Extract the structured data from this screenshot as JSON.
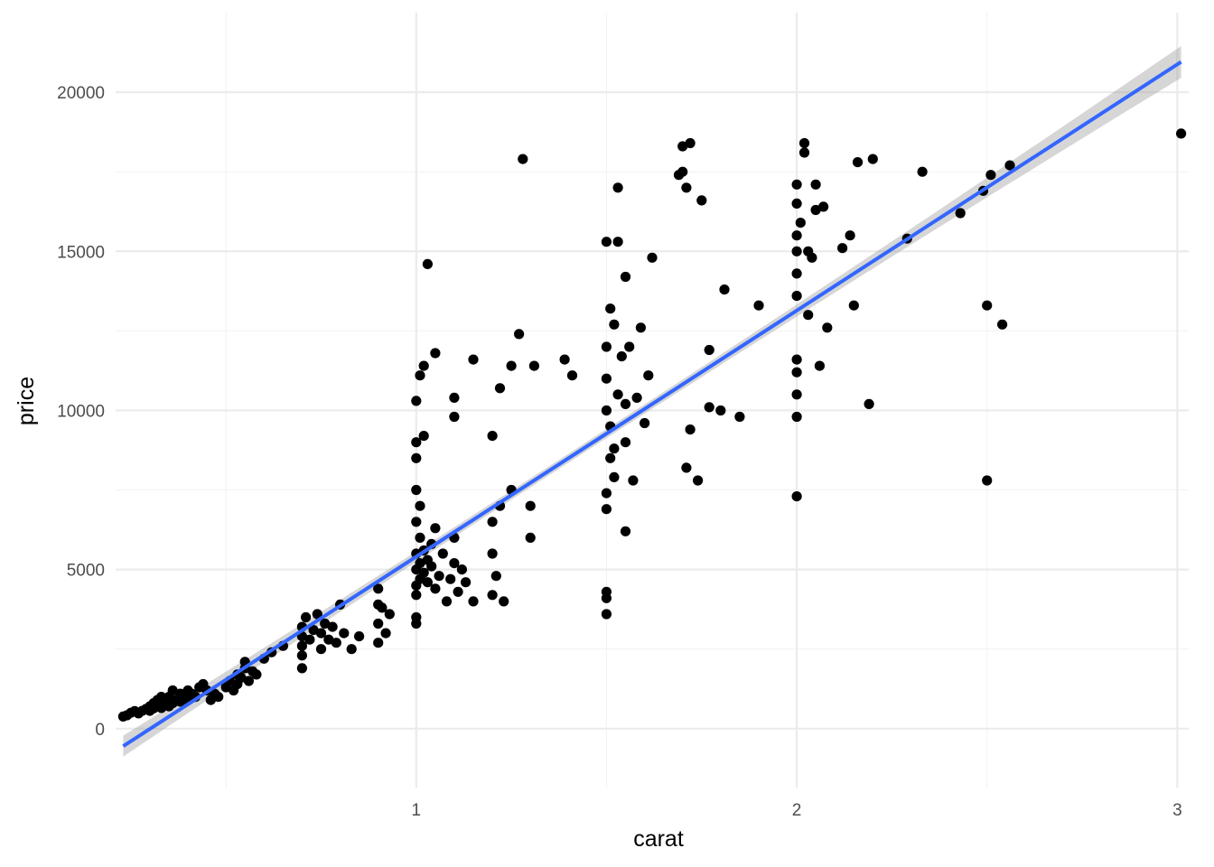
{
  "chart_data": {
    "type": "scatter",
    "xlabel": "carat",
    "ylabel": "price",
    "xlim": [
      0.21,
      3.03
    ],
    "ylim": [
      -1850,
      22500
    ],
    "x_ticks": [
      1,
      2,
      3
    ],
    "x_tick_labels": [
      "1",
      "2",
      "3"
    ],
    "y_ticks": [
      0,
      5000,
      10000,
      15000,
      20000
    ],
    "y_tick_labels": [
      "0",
      "5000",
      "10000",
      "15000",
      "20000"
    ],
    "grid": true,
    "legend": "none",
    "colors": {
      "points": "#000000",
      "fit_line": "#3366ff",
      "confidence_band": "#999999"
    },
    "fit": {
      "method": "lm",
      "x": [
        0.23,
        3.01
      ],
      "y": [
        -550,
        20950
      ],
      "se_band_halfwidth": [
        140,
        500
      ]
    },
    "points": [
      [
        0.23,
        380
      ],
      [
        0.24,
        420
      ],
      [
        0.25,
        500
      ],
      [
        0.26,
        550
      ],
      [
        0.27,
        480
      ],
      [
        0.28,
        560
      ],
      [
        0.29,
        620
      ],
      [
        0.3,
        700
      ],
      [
        0.3,
        560
      ],
      [
        0.31,
        800
      ],
      [
        0.31,
        640
      ],
      [
        0.32,
        900
      ],
      [
        0.32,
        700
      ],
      [
        0.33,
        650
      ],
      [
        0.33,
        1000
      ],
      [
        0.34,
        760
      ],
      [
        0.34,
        860
      ],
      [
        0.35,
        1000
      ],
      [
        0.35,
        700
      ],
      [
        0.36,
        1200
      ],
      [
        0.36,
        800
      ],
      [
        0.37,
        900
      ],
      [
        0.38,
        1100
      ],
      [
        0.38,
        850
      ],
      [
        0.39,
        1000
      ],
      [
        0.4,
        1200
      ],
      [
        0.4,
        900
      ],
      [
        0.41,
        1100
      ],
      [
        0.42,
        1000
      ],
      [
        0.43,
        1300
      ],
      [
        0.44,
        1400
      ],
      [
        0.45,
        1200
      ],
      [
        0.46,
        900
      ],
      [
        0.47,
        1100
      ],
      [
        0.48,
        1000
      ],
      [
        0.5,
        1300
      ],
      [
        0.51,
        1500
      ],
      [
        0.52,
        1200
      ],
      [
        0.53,
        1700
      ],
      [
        0.53,
        1400
      ],
      [
        0.54,
        1600
      ],
      [
        0.55,
        1900
      ],
      [
        0.55,
        2100
      ],
      [
        0.56,
        1500
      ],
      [
        0.57,
        1800
      ],
      [
        0.58,
        1700
      ],
      [
        0.6,
        2200
      ],
      [
        0.62,
        2400
      ],
      [
        0.65,
        2600
      ],
      [
        0.7,
        1900
      ],
      [
        0.7,
        2300
      ],
      [
        0.7,
        2600
      ],
      [
        0.7,
        2900
      ],
      [
        0.7,
        3200
      ],
      [
        0.71,
        3500
      ],
      [
        0.72,
        2800
      ],
      [
        0.73,
        3100
      ],
      [
        0.74,
        3600
      ],
      [
        0.75,
        3000
      ],
      [
        0.75,
        2500
      ],
      [
        0.76,
        3300
      ],
      [
        0.77,
        2800
      ],
      [
        0.78,
        3200
      ],
      [
        0.79,
        2700
      ],
      [
        0.8,
        3900
      ],
      [
        0.81,
        3000
      ],
      [
        0.83,
        2500
      ],
      [
        0.85,
        2900
      ],
      [
        0.9,
        3300
      ],
      [
        0.9,
        3900
      ],
      [
        0.9,
        4400
      ],
      [
        0.9,
        2700
      ],
      [
        0.91,
        3800
      ],
      [
        0.92,
        3000
      ],
      [
        0.93,
        3600
      ],
      [
        1.0,
        4500
      ],
      [
        1.0,
        5000
      ],
      [
        1.0,
        5500
      ],
      [
        1.0,
        4200
      ],
      [
        1.0,
        6500
      ],
      [
        1.0,
        7500
      ],
      [
        1.0,
        8500
      ],
      [
        1.0,
        9000
      ],
      [
        1.0,
        3500
      ],
      [
        1.0,
        3300
      ],
      [
        1.01,
        4700
      ],
      [
        1.01,
        5200
      ],
      [
        1.01,
        6000
      ],
      [
        1.01,
        7000
      ],
      [
        1.02,
        4900
      ],
      [
        1.02,
        5600
      ],
      [
        1.02,
        9200
      ],
      [
        1.03,
        4600
      ],
      [
        1.03,
        5300
      ],
      [
        1.04,
        5100
      ],
      [
        1.04,
        5800
      ],
      [
        1.05,
        4400
      ],
      [
        1.05,
        6300
      ],
      [
        1.06,
        4800
      ],
      [
        1.07,
        5500
      ],
      [
        1.08,
        4000
      ],
      [
        1.09,
        4700
      ],
      [
        1.1,
        5200
      ],
      [
        1.1,
        6000
      ],
      [
        1.11,
        4300
      ],
      [
        1.12,
        5000
      ],
      [
        1.13,
        4600
      ],
      [
        1.15,
        4000
      ],
      [
        1.2,
        5500
      ],
      [
        1.2,
        4200
      ],
      [
        1.2,
        6500
      ],
      [
        1.21,
        4800
      ],
      [
        1.22,
        7000
      ],
      [
        1.23,
        4000
      ],
      [
        1.25,
        7500
      ],
      [
        1.3,
        6000
      ],
      [
        1.3,
        7000
      ],
      [
        1.0,
        10300
      ],
      [
        1.01,
        11100
      ],
      [
        1.02,
        11400
      ],
      [
        1.03,
        14600
      ],
      [
        1.05,
        11800
      ],
      [
        1.1,
        9800
      ],
      [
        1.1,
        10400
      ],
      [
        1.15,
        11600
      ],
      [
        1.2,
        9200
      ],
      [
        1.22,
        10700
      ],
      [
        1.25,
        11400
      ],
      [
        1.27,
        12400
      ],
      [
        1.28,
        17900
      ],
      [
        1.31,
        11400
      ],
      [
        1.39,
        11600
      ],
      [
        1.41,
        11100
      ],
      [
        1.5,
        10000
      ],
      [
        1.5,
        11000
      ],
      [
        1.5,
        12000
      ],
      [
        1.51,
        13200
      ],
      [
        1.51,
        9500
      ],
      [
        1.52,
        12700
      ],
      [
        1.52,
        8800
      ],
      [
        1.53,
        10500
      ],
      [
        1.54,
        11700
      ],
      [
        1.55,
        9000
      ],
      [
        1.55,
        10200
      ],
      [
        1.56,
        12000
      ],
      [
        1.58,
        10400
      ],
      [
        1.59,
        12600
      ],
      [
        1.6,
        9600
      ],
      [
        1.61,
        11100
      ],
      [
        1.5,
        7400
      ],
      [
        1.5,
        6900
      ],
      [
        1.51,
        8500
      ],
      [
        1.52,
        7900
      ],
      [
        1.55,
        6200
      ],
      [
        1.57,
        7800
      ],
      [
        1.5,
        4300
      ],
      [
        1.5,
        4100
      ],
      [
        1.5,
        3600
      ],
      [
        1.5,
        15300
      ],
      [
        1.53,
        15300
      ],
      [
        1.53,
        17000
      ],
      [
        1.55,
        14200
      ],
      [
        1.62,
        14800
      ],
      [
        1.69,
        17400
      ],
      [
        1.7,
        17500
      ],
      [
        1.7,
        18300
      ],
      [
        1.72,
        18400
      ],
      [
        1.71,
        17000
      ],
      [
        1.75,
        16600
      ],
      [
        1.71,
        8200
      ],
      [
        1.74,
        7800
      ],
      [
        1.72,
        9400
      ],
      [
        1.77,
        11900
      ],
      [
        1.77,
        10100
      ],
      [
        1.8,
        10000
      ],
      [
        1.85,
        9800
      ],
      [
        1.81,
        13800
      ],
      [
        1.9,
        13300
      ],
      [
        2.0,
        9800
      ],
      [
        2.0,
        7300
      ],
      [
        2.0,
        10500
      ],
      [
        2.0,
        11200
      ],
      [
        2.0,
        11600
      ],
      [
        2.0,
        13600
      ],
      [
        2.0,
        14300
      ],
      [
        2.0,
        15000
      ],
      [
        2.0,
        15500
      ],
      [
        2.0,
        16500
      ],
      [
        2.0,
        17100
      ],
      [
        2.01,
        15900
      ],
      [
        2.02,
        18400
      ],
      [
        2.02,
        18100
      ],
      [
        2.03,
        15000
      ],
      [
        2.03,
        13000
      ],
      [
        2.04,
        14800
      ],
      [
        2.05,
        17100
      ],
      [
        2.05,
        16300
      ],
      [
        2.06,
        11400
      ],
      [
        2.07,
        16400
      ],
      [
        2.08,
        12600
      ],
      [
        2.12,
        15100
      ],
      [
        2.14,
        15500
      ],
      [
        2.15,
        13300
      ],
      [
        2.16,
        17800
      ],
      [
        2.2,
        17900
      ],
      [
        2.19,
        10200
      ],
      [
        2.29,
        15400
      ],
      [
        2.33,
        17500
      ],
      [
        2.43,
        16200
      ],
      [
        2.49,
        16900
      ],
      [
        2.51,
        17400
      ],
      [
        2.56,
        17700
      ],
      [
        2.5,
        13300
      ],
      [
        2.54,
        12700
      ],
      [
        2.5,
        7800
      ],
      [
        3.01,
        18700
      ]
    ]
  }
}
